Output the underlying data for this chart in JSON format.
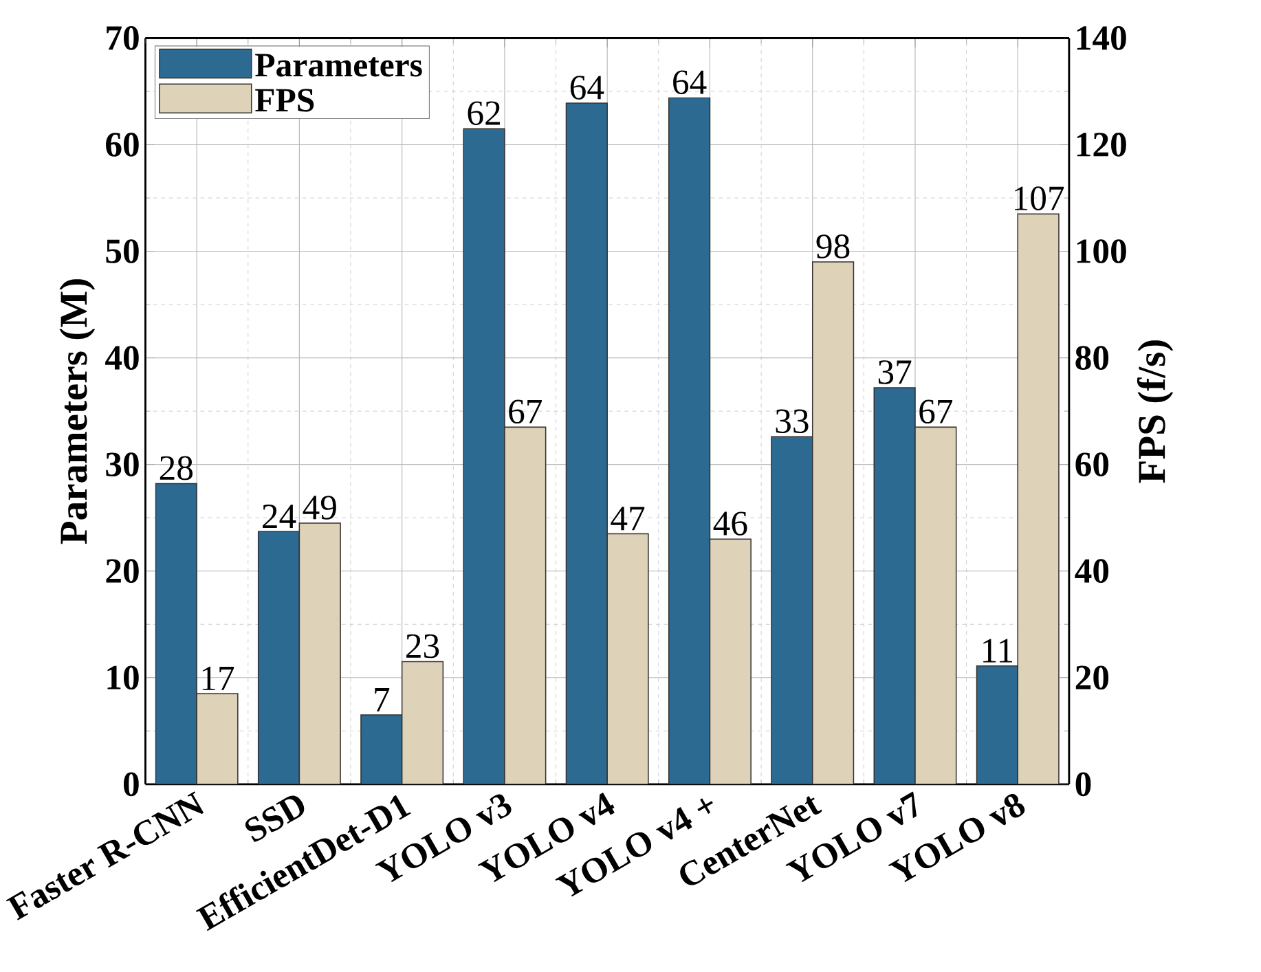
{
  "chart_data": {
    "type": "bar",
    "categories": [
      "Faster R-CNN",
      "SSD",
      "EfficientDet-D1",
      "YOLO v3",
      "YOLO v4",
      "YOLO v4 +",
      "CenterNet",
      "YOLO v7",
      "YOLO v8"
    ],
    "ylabel": "Parameters (M)",
    "y2label": "FPS (f/s)",
    "ylim": [
      0,
      70
    ],
    "yticks": [
      0,
      10,
      20,
      30,
      40,
      50,
      60,
      70
    ],
    "y2lim": [
      0,
      140
    ],
    "y2ticks": [
      0,
      20,
      40,
      60,
      80,
      100,
      120,
      140
    ],
    "grid": true,
    "legend": "top left",
    "series": [
      {
        "name": "Parameters",
        "color": "#2d6a92",
        "values": [
          28.2,
          23.7,
          6.5,
          61.5,
          63.9,
          64.4,
          32.6,
          37.2,
          11.1
        ],
        "value_labels": [
          "28",
          "24",
          "7",
          "62",
          "64",
          "64",
          "33",
          "37",
          "11"
        ]
      },
      {
        "name": "FPS",
        "color": "#ded3b9",
        "axis": "y2",
        "values": [
          17,
          49,
          23,
          67,
          47,
          46,
          98,
          67,
          107
        ],
        "value_labels": [
          "17",
          "49",
          "23",
          "67",
          "47",
          "46",
          "98",
          "67",
          "107"
        ]
      }
    ]
  }
}
